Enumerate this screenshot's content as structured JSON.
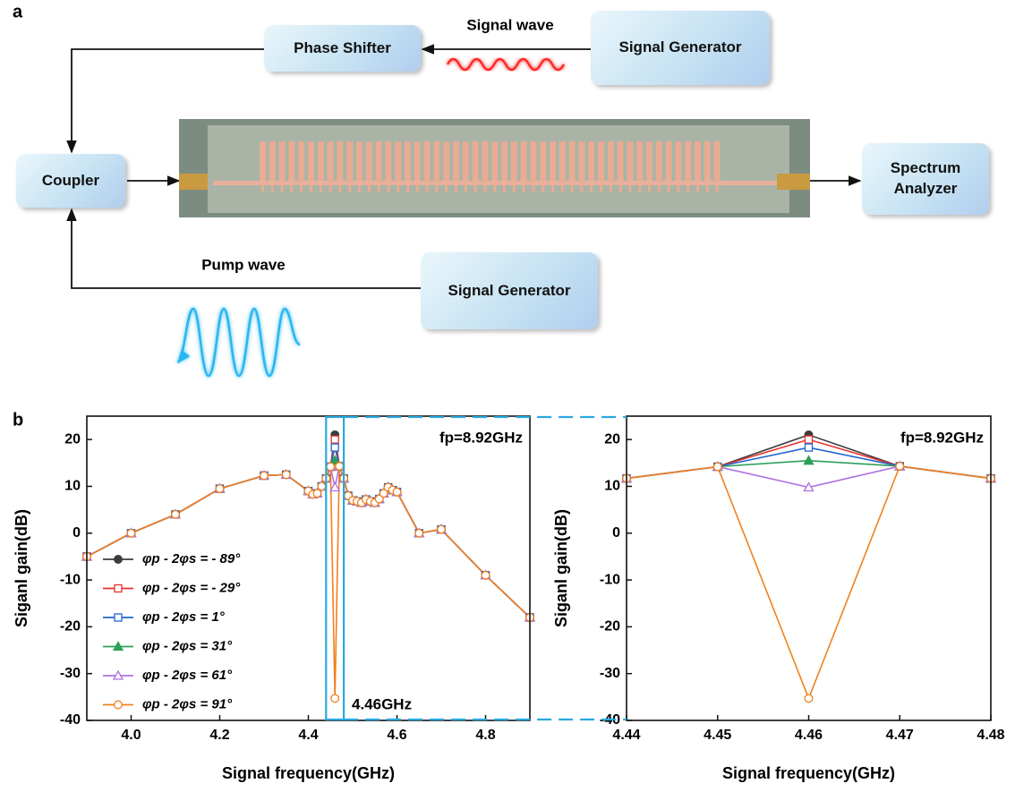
{
  "panel_labels": [
    "a",
    "b"
  ],
  "diagram": {
    "nodes": [
      {
        "label": "Phase Shifter"
      },
      {
        "label": "Signal Generator"
      },
      {
        "label": "Coupler"
      },
      {
        "label": "Spectrum Analyzer"
      },
      {
        "label": "Signal Generator"
      }
    ],
    "wave_labels": [
      "Signal wave",
      "Pump wave"
    ]
  },
  "chart_data": [
    {
      "type": "line",
      "xlabel": "Signal frequency(GHz)",
      "ylabel": "Siganl gain(dB)",
      "annotations": [
        "fp=8.92GHz",
        "4.46GHz"
      ],
      "xlim": [
        3.9,
        4.9
      ],
      "xticks": [
        {
          "value": 4,
          "label": "4.0"
        },
        4.2,
        4.4,
        4.6,
        4.8
      ],
      "ylim": [
        -40,
        25
      ],
      "yticks": [
        -40,
        -30,
        -20,
        -10,
        0,
        10,
        20
      ],
      "legend": "lower left",
      "x": [
        3.9,
        4.0,
        4.1,
        4.2,
        4.3,
        4.35,
        4.4,
        4.41,
        4.42,
        4.43,
        4.44,
        4.45,
        4.46,
        4.47,
        4.48,
        4.49,
        4.5,
        4.51,
        4.52,
        4.53,
        4.54,
        4.55,
        4.56,
        4.57,
        4.58,
        4.59,
        4.6,
        4.65,
        4.7,
        4.8,
        4.9
      ],
      "series": [
        {
          "name": "φp - 2φs = - 89°",
          "color": "#3c3c3c",
          "marker": "circle",
          "hollow": false,
          "values": [
            -5,
            0,
            4,
            9.5,
            12.3,
            12.5,
            9,
            8.3,
            8.5,
            10,
            11.7,
            14.2,
            21,
            14.3,
            11.7,
            8,
            7,
            6.8,
            6.5,
            7.2,
            6.8,
            6.5,
            7.3,
            8.5,
            9.8,
            9.2,
            8.8,
            0,
            0.8,
            -9,
            -18
          ]
        },
        {
          "name": "φp - 2φs = - 29°",
          "color": "#e8322d",
          "marker": "square",
          "hollow": true,
          "values": [
            -5,
            0,
            4,
            9.5,
            12.3,
            12.5,
            9,
            8.3,
            8.5,
            10,
            11.7,
            14.2,
            20,
            14.3,
            11.7,
            8,
            7,
            6.8,
            6.5,
            7.2,
            6.8,
            6.5,
            7.3,
            8.5,
            9.8,
            9.2,
            8.8,
            0,
            0.8,
            -9,
            -18
          ]
        },
        {
          "name": "φp - 2φs = 1°",
          "color": "#2266cc",
          "marker": "square",
          "hollow": true,
          "values": [
            -5,
            0,
            4,
            9.5,
            12.3,
            12.5,
            9,
            8.3,
            8.5,
            10,
            11.7,
            14.2,
            18.3,
            14.3,
            11.7,
            8,
            7,
            6.8,
            6.5,
            7.2,
            6.8,
            6.5,
            7.3,
            8.5,
            9.8,
            9.2,
            8.8,
            0,
            0.8,
            -9,
            -18
          ]
        },
        {
          "name": "φp - 2φs = 31°",
          "color": "#2ca05a",
          "marker": "triangle",
          "hollow": false,
          "values": [
            -5,
            0,
            4,
            9.5,
            12.3,
            12.5,
            9,
            8.3,
            8.5,
            10,
            11.7,
            14.2,
            15.5,
            14.3,
            11.7,
            8,
            7,
            6.8,
            6.5,
            7.2,
            6.8,
            6.5,
            7.3,
            8.5,
            9.8,
            9.2,
            8.8,
            0,
            0.8,
            -9,
            -18
          ]
        },
        {
          "name": "φp - 2φs = 61°",
          "color": "#b070e0",
          "marker": "triangle",
          "hollow": true,
          "values": [
            -5,
            0,
            4,
            9.5,
            12.3,
            12.5,
            9,
            8.3,
            8.5,
            10,
            11.7,
            14.2,
            9.8,
            14.3,
            11.7,
            8,
            7,
            6.8,
            6.5,
            7.2,
            6.8,
            6.5,
            7.3,
            8.5,
            9.8,
            9.2,
            8.8,
            0,
            0.8,
            -9,
            -18
          ]
        },
        {
          "name": "φp - 2φs = 91°",
          "color": "#f08020",
          "marker": "circle",
          "hollow": true,
          "values": [
            -5,
            0,
            4,
            9.5,
            12.3,
            12.5,
            9,
            8.3,
            8.5,
            10,
            11.7,
            14.2,
            -35.3,
            14.3,
            11.7,
            8,
            7,
            6.8,
            6.5,
            7.2,
            6.8,
            6.5,
            7.3,
            8.5,
            9.8,
            9.2,
            8.8,
            0,
            0.8,
            -9,
            -18
          ]
        }
      ]
    },
    {
      "type": "line",
      "xlabel": "Signal frequency(GHz)",
      "ylabel": "Siganl gain(dB)",
      "annotations": [
        "fp=8.92GHz"
      ],
      "xlim": [
        4.44,
        4.48
      ],
      "xticks": [
        4.44,
        4.45,
        4.46,
        4.47,
        4.48
      ],
      "ylim": [
        -40,
        25
      ],
      "yticks": [
        -40,
        -30,
        -20,
        -10,
        0,
        10,
        20
      ],
      "x": [
        4.44,
        4.45,
        4.46,
        4.47,
        4.48
      ],
      "series": [
        {
          "color": "#3c3c3c",
          "marker": "circle",
          "hollow": false,
          "values": [
            11.7,
            14.2,
            21,
            14.3,
            11.7
          ]
        },
        {
          "color": "#e8322d",
          "marker": "square",
          "hollow": true,
          "values": [
            11.7,
            14.2,
            20,
            14.3,
            11.7
          ]
        },
        {
          "color": "#2266cc",
          "marker": "square",
          "hollow": true,
          "values": [
            11.7,
            14.2,
            18.3,
            14.3,
            11.7
          ]
        },
        {
          "color": "#2ca05a",
          "marker": "triangle",
          "hollow": false,
          "values": [
            11.7,
            14.2,
            15.5,
            14.3,
            11.7
          ]
        },
        {
          "color": "#b070e0",
          "marker": "triangle",
          "hollow": true,
          "values": [
            11.7,
            14.2,
            9.8,
            14.3,
            11.7
          ]
        },
        {
          "color": "#f08020",
          "marker": "circle",
          "hollow": true,
          "values": [
            11.7,
            14.2,
            -35.3,
            14.3,
            11.7
          ]
        }
      ]
    }
  ]
}
